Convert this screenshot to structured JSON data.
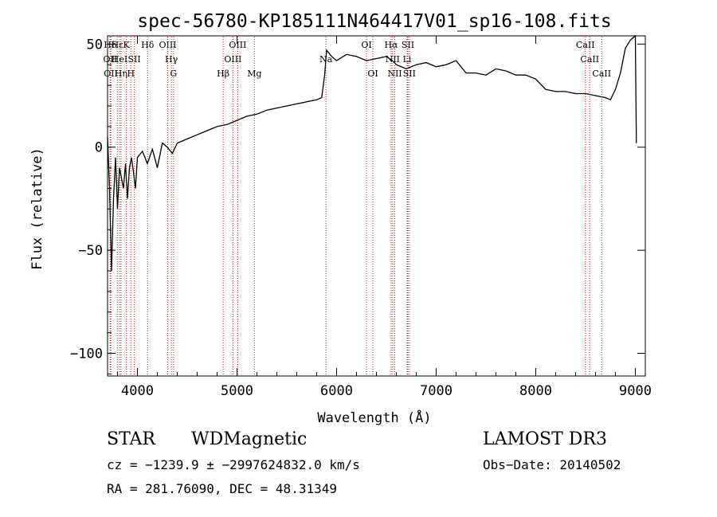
{
  "chart_data": {
    "type": "line",
    "title": "spec-56780-KP185111N464417V01_sp16-108.fits",
    "xlabel": "Wavelength (Å)",
    "ylabel": "Flux (relative)",
    "xlim": [
      3700,
      9100
    ],
    "ylim": [
      -111,
      54
    ],
    "xticks": [
      4000,
      5000,
      6000,
      7000,
      8000,
      9000
    ],
    "yticks": [
      -100,
      -50,
      0,
      50
    ],
    "grid": false,
    "series": [
      {
        "name": "spectrum",
        "x": [
          3700,
          3720,
          3740,
          3760,
          3780,
          3800,
          3820,
          3840,
          3860,
          3880,
          3900,
          3920,
          3940,
          3960,
          3980,
          4000,
          4050,
          4100,
          4150,
          4200,
          4250,
          4300,
          4350,
          4400,
          4500,
          4600,
          4700,
          4800,
          4900,
          5000,
          5100,
          5200,
          5300,
          5400,
          5500,
          5600,
          5700,
          5800,
          5850,
          5880,
          5900,
          5950,
          6000,
          6100,
          6200,
          6300,
          6400,
          6500,
          6560,
          6600,
          6700,
          6800,
          6900,
          7000,
          7100,
          7200,
          7300,
          7400,
          7500,
          7600,
          7700,
          7800,
          7900,
          8000,
          8100,
          8200,
          8300,
          8400,
          8500,
          8600,
          8700,
          8750,
          8800,
          8850,
          8900,
          8950,
          9000,
          9010
        ],
        "y": [
          5,
          -20,
          -60,
          -25,
          -5,
          -30,
          -10,
          -15,
          -20,
          -8,
          -25,
          -10,
          -5,
          -12,
          -20,
          -5,
          -2,
          -8,
          -1,
          -10,
          2,
          0,
          -3,
          2,
          4,
          6,
          8,
          10,
          11,
          13,
          15,
          16,
          18,
          19,
          20,
          21,
          22,
          23,
          24,
          35,
          47,
          44,
          42,
          45,
          44,
          42,
          43,
          44,
          42,
          40,
          38,
          40,
          41,
          39,
          40,
          42,
          36,
          36,
          35,
          38,
          37,
          35,
          35,
          33,
          28,
          27,
          27,
          26,
          26,
          25,
          24,
          23,
          28,
          36,
          48,
          52,
          54,
          2
        ]
      }
    ],
    "lines": [
      {
        "name": "Hδ",
        "wavelength": 3727,
        "label_row": 0
      },
      {
        "name": "OII",
        "wavelength": 3727,
        "label_row": 1
      },
      {
        "name": "OII",
        "wavelength": 3733,
        "label_row": 2
      },
      {
        "name": "Hε",
        "wavelength": 3798,
        "label_row": 0
      },
      {
        "name": "HeI",
        "wavelength": 3820,
        "label_row": 1
      },
      {
        "name": "Hη",
        "wavelength": 3835,
        "label_row": 2
      },
      {
        "name": "K",
        "wavelength": 3889,
        "label_row": 0
      },
      {
        "name": "H",
        "wavelength": 3934,
        "label_row": 2
      },
      {
        "name": "SII",
        "wavelength": 3969,
        "label_row": 1
      },
      {
        "name": "Hδ",
        "wavelength": 4102,
        "label_row": 0
      },
      {
        "name": "OIII",
        "wavelength": 4304,
        "label_row": 0
      },
      {
        "name": "Hγ",
        "wavelength": 4341,
        "label_row": 1
      },
      {
        "name": "G",
        "wavelength": 4363,
        "label_row": 2
      },
      {
        "name": "Hβ",
        "wavelength": 4861,
        "label_row": 2
      },
      {
        "name": "OIII",
        "wavelength": 4959,
        "label_row": 1
      },
      {
        "name": "OIII",
        "wavelength": 5007,
        "label_row": 0
      },
      {
        "name": "Mg",
        "wavelength": 5175,
        "label_row": 2
      },
      {
        "name": "Na",
        "wavelength": 5893,
        "label_row": 1
      },
      {
        "name": "OI",
        "wavelength": 6300,
        "label_row": 0
      },
      {
        "name": "OI",
        "wavelength": 6364,
        "label_row": 2
      },
      {
        "name": "Hα",
        "wavelength": 6548,
        "label_row": 0
      },
      {
        "name": "NII",
        "wavelength": 6563,
        "label_row": 1
      },
      {
        "name": "NII",
        "wavelength": 6584,
        "label_row": 2
      },
      {
        "name": "SII",
        "wavelength": 6716,
        "label_row": 0
      },
      {
        "name": "Li",
        "wavelength": 6708,
        "label_row": 1
      },
      {
        "name": "SII",
        "wavelength": 6731,
        "label_row": 2
      },
      {
        "name": "CaII",
        "wavelength": 8498,
        "label_row": 0
      },
      {
        "name": "CaII",
        "wavelength": 8542,
        "label_row": 1
      },
      {
        "name": "CaII",
        "wavelength": 8662,
        "label_row": 2
      }
    ]
  },
  "info": {
    "class": "STAR",
    "subclass": "WDMagnetic",
    "survey": "LAMOST DR3",
    "cz": "cz = −1239.9 ± −2997624832.0 km/s",
    "obs_date": "Obs−Date: 20140502",
    "radec": "RA = 281.76090, DEC =  48.31349"
  },
  "colors": {
    "spectrum": "#000000",
    "line_marker": "#b22222",
    "axes": "#000000"
  }
}
